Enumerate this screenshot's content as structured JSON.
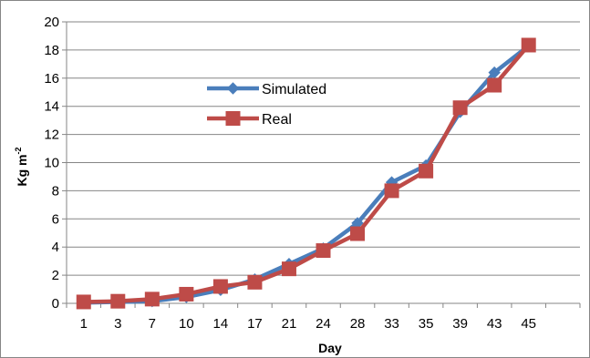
{
  "chart_data": {
    "type": "line",
    "categories": [
      "1",
      "3",
      "7",
      "10",
      "14",
      "17",
      "21",
      "24",
      "28",
      "33",
      "35",
      "39",
      "43",
      "45"
    ],
    "series": [
      {
        "name": "Simulated",
        "color": "#4A7EBB",
        "marker": "diamond",
        "values": [
          0.05,
          0.1,
          0.15,
          0.45,
          0.95,
          1.7,
          2.8,
          3.9,
          5.7,
          8.6,
          9.8,
          13.6,
          16.4,
          18.3
        ]
      },
      {
        "name": "Real",
        "color": "#BE4B48",
        "marker": "square",
        "values": [
          0.1,
          0.15,
          0.3,
          0.65,
          1.2,
          1.5,
          2.45,
          3.75,
          4.95,
          8.0,
          9.4,
          13.9,
          15.5,
          18.35
        ]
      }
    ],
    "xlabel": "Day",
    "ylabel": "Kg m",
    "ylabel_superscript": "-2",
    "ylim": [
      0,
      20
    ],
    "ytick_step": 2,
    "grid": true,
    "legend": "upper-left inside plot"
  }
}
